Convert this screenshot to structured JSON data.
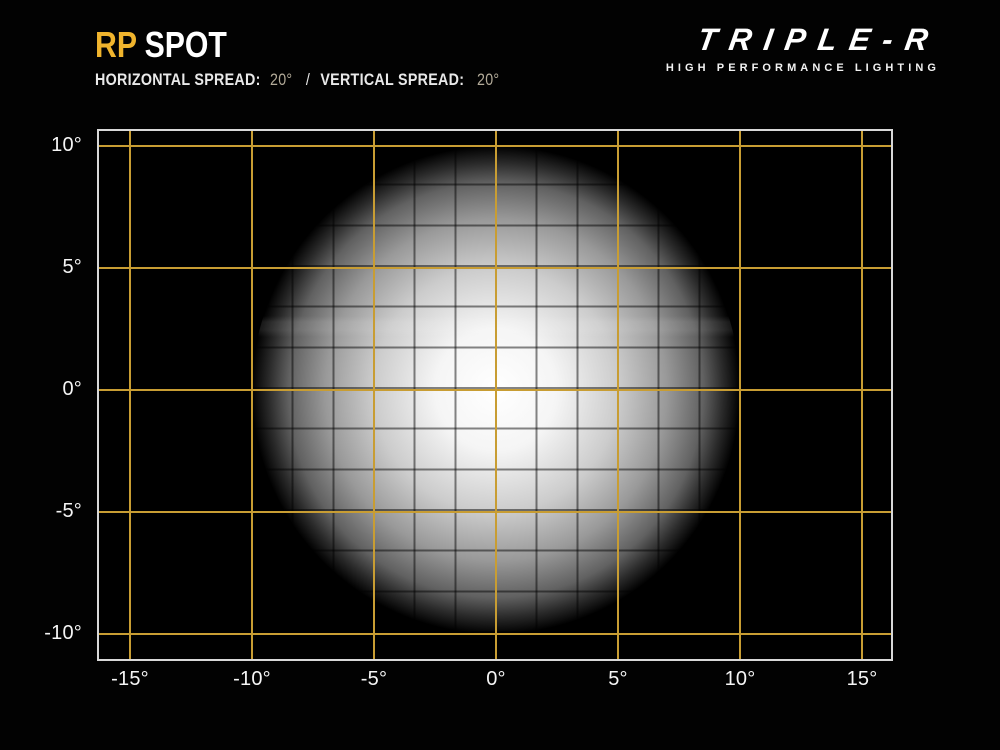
{
  "page": {
    "background": "#020202"
  },
  "header": {
    "title_accent": "RP",
    "title_main": "SPOT",
    "accent_color": "#F0B42D",
    "spread_line": {
      "horizontal_label": "HORIZONTAL SPREAD:",
      "horizontal_value": "20°",
      "divider": "/",
      "vertical_label": "VERTICAL SPREAD:",
      "vertical_value": "20°"
    }
  },
  "brand": {
    "wordmark": "TRIPLE-R",
    "tagline": "HIGH PERFORMANCE LIGHTING"
  },
  "chart_data": {
    "type": "heatmap",
    "description": "Photometric beam-pattern diagram: circular white light spot on angular degree grid",
    "x_ticks": [
      "-15°",
      "-10°",
      "-5°",
      "0°",
      "5°",
      "10°",
      "15°"
    ],
    "x_tick_values_deg": [
      -15,
      -10,
      -5,
      0,
      5,
      10,
      15
    ],
    "y_ticks": [
      "10°",
      "5°",
      "0°",
      "-5°",
      "-10°"
    ],
    "y_tick_values_deg": [
      10,
      5,
      0,
      -5,
      -10
    ],
    "major_grid_spacing_deg": 5,
    "minor_grid_cells_per_major": 3,
    "grid_major_color": "#C89D33",
    "grid_minor_color": "rgba(0,0,0,0.48)",
    "border_color": "#D8D8D8",
    "axis_label_color": "#F5F5F5",
    "grid_on": true,
    "legend": "none",
    "beam": {
      "center_deg": {
        "x": 0,
        "y": 0
      },
      "radius_deg": 10,
      "horizontal_spread_deg": 20,
      "vertical_spread_deg": 20,
      "intensity_profile": [
        {
          "r_deg": 0,
          "intensity": 1.0
        },
        {
          "r_deg": 2.5,
          "intensity": 0.96
        },
        {
          "r_deg": 5,
          "intensity": 0.8
        },
        {
          "r_deg": 7,
          "intensity": 0.6
        },
        {
          "r_deg": 8.5,
          "intensity": 0.38
        },
        {
          "r_deg": 9.3,
          "intensity": 0.17
        },
        {
          "r_deg": 10,
          "intensity": 0.0
        }
      ]
    }
  }
}
